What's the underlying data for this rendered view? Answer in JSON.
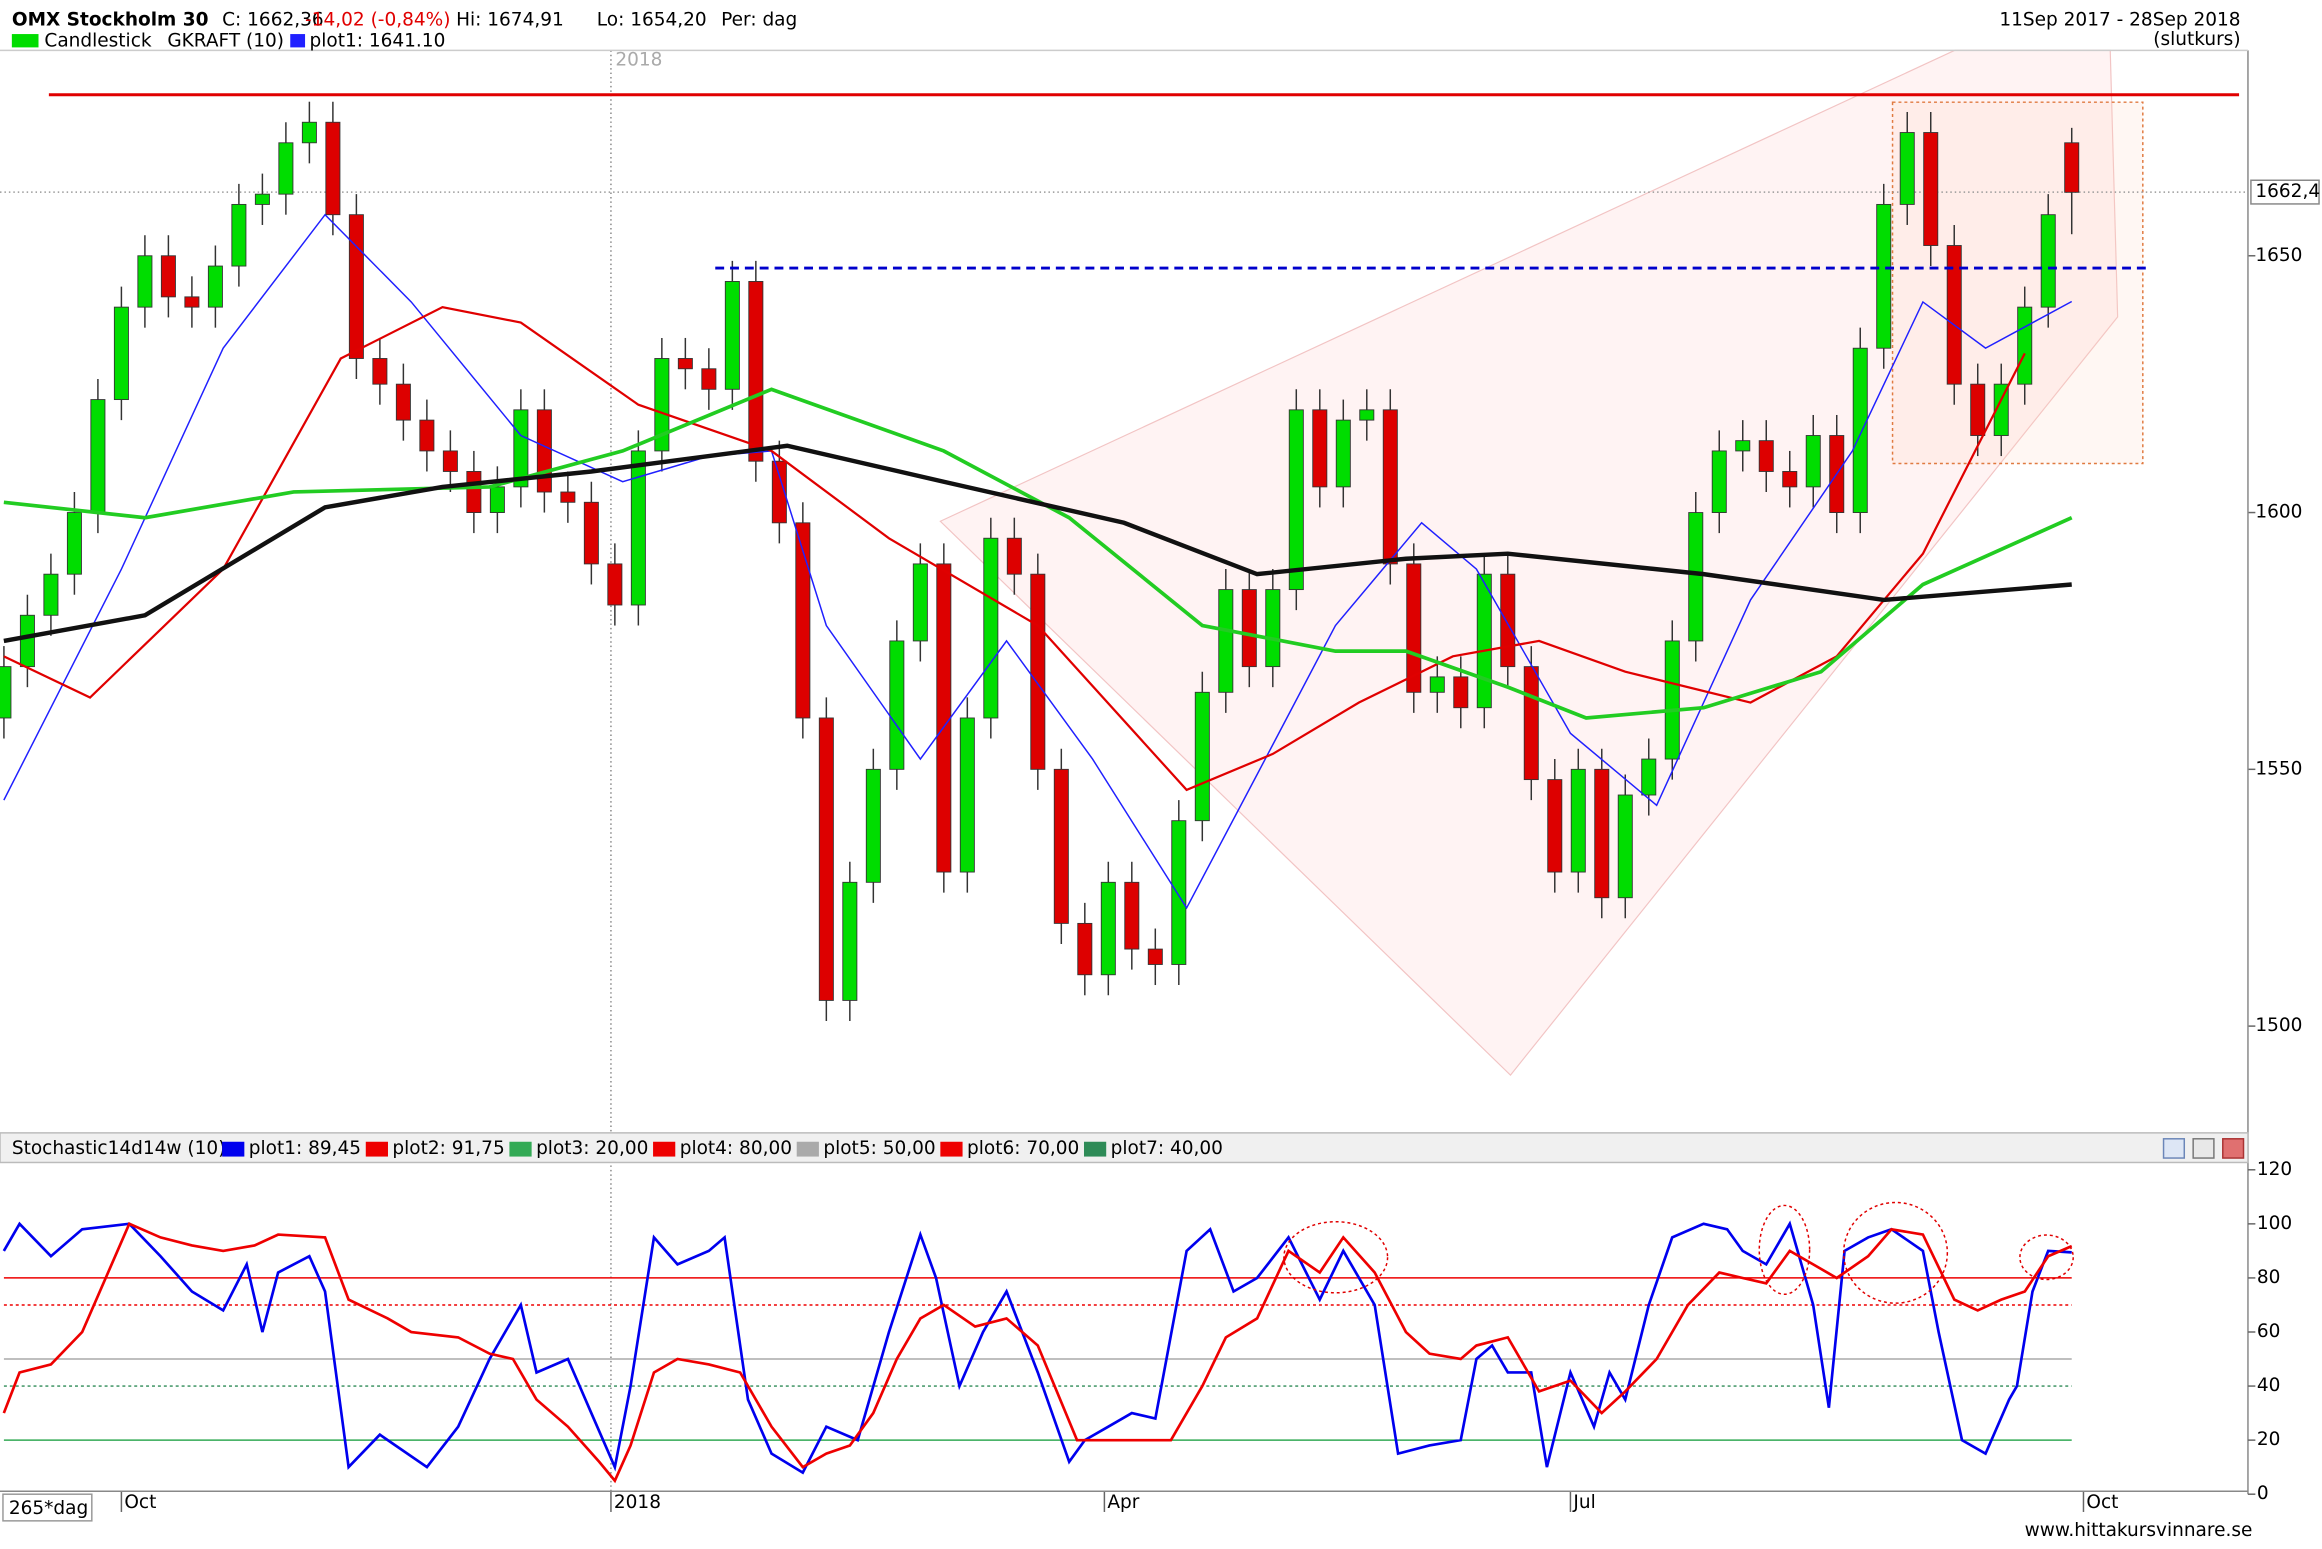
{
  "chart_data": [
    {
      "type": "candlestick",
      "title": "OMX Stockholm 30",
      "quote": {
        "close": "C: 1662,36",
        "change": "-14,02 (-0,84%)",
        "high": "Hi: 1674,91",
        "low": "Lo: 1654,20",
        "period": "Per: dag"
      },
      "date_range": "11Sep 2017 - 28Sep 2018",
      "price_type": "(slutkurs)",
      "candle_label": "Candlestick",
      "indicator": "GKRAFT (10)",
      "up_color": "#00dd00",
      "down_color": "#dd0000",
      "x": [
        0,
        3,
        6,
        9,
        12,
        15,
        18,
        21,
        24,
        27,
        30,
        33,
        36,
        39,
        42,
        45,
        48,
        51,
        54,
        57,
        60,
        63,
        66,
        69,
        72,
        75,
        78,
        81,
        84,
        87,
        90,
        93,
        96,
        99,
        102,
        105,
        108,
        111,
        114,
        117,
        120,
        123,
        126,
        129,
        132,
        135,
        138,
        141,
        144,
        147,
        150,
        153,
        156,
        159,
        162,
        165,
        168,
        171,
        174,
        177,
        180,
        183,
        186,
        189,
        192,
        195,
        198,
        201,
        204,
        207,
        210,
        213,
        216,
        219,
        222,
        225,
        228,
        231,
        234,
        237,
        240,
        243,
        246,
        249,
        252,
        255,
        258,
        261,
        264
      ],
      "open": [
        1560,
        1570,
        1580,
        1588,
        1600,
        1622,
        1640,
        1650,
        1642,
        1640,
        1648,
        1660,
        1662,
        1672,
        1676,
        1658,
        1630,
        1625,
        1618,
        1612,
        1608,
        1600,
        1605,
        1620,
        1604,
        1602,
        1590,
        1582,
        1612,
        1630,
        1628,
        1624,
        1645,
        1610,
        1598,
        1560,
        1505,
        1528,
        1550,
        1575,
        1590,
        1530,
        1560,
        1595,
        1588,
        1550,
        1520,
        1510,
        1528,
        1515,
        1512,
        1540,
        1565,
        1585,
        1570,
        1585,
        1620,
        1605,
        1618,
        1620,
        1590,
        1565,
        1568,
        1562,
        1588,
        1570,
        1548,
        1530,
        1550,
        1525,
        1545,
        1552,
        1575,
        1600,
        1612,
        1614,
        1608,
        1605,
        1615,
        1600,
        1632,
        1660,
        1674,
        1652,
        1625,
        1615,
        1625,
        1640,
        1672
      ],
      "high": [
        1574,
        1584,
        1592,
        1604,
        1626,
        1644,
        1654,
        1654,
        1646,
        1652,
        1664,
        1666,
        1676,
        1680,
        1680,
        1662,
        1634,
        1629,
        1622,
        1616,
        1612,
        1609,
        1624,
        1624,
        1608,
        1606,
        1594,
        1616,
        1634,
        1634,
        1632,
        1649,
        1649,
        1614,
        1602,
        1564,
        1532,
        1554,
        1579,
        1594,
        1594,
        1564,
        1599,
        1599,
        1592,
        1554,
        1524,
        1532,
        1532,
        1519,
        1544,
        1569,
        1589,
        1589,
        1589,
        1624,
        1624,
        1622,
        1624,
        1624,
        1594,
        1572,
        1572,
        1592,
        1592,
        1574,
        1552,
        1554,
        1554,
        1549,
        1556,
        1579,
        1604,
        1616,
        1618,
        1618,
        1612,
        1619,
        1619,
        1636,
        1664,
        1678,
        1678,
        1656,
        1629,
        1629,
        1644,
        1662,
        1674.91
      ],
      "low": [
        1556,
        1566,
        1576,
        1584,
        1596,
        1618,
        1636,
        1638,
        1636,
        1636,
        1644,
        1656,
        1658,
        1668,
        1654,
        1626,
        1621,
        1614,
        1608,
        1604,
        1596,
        1596,
        1601,
        1600,
        1598,
        1586,
        1578,
        1578,
        1608,
        1624,
        1620,
        1620,
        1606,
        1594,
        1556,
        1501,
        1501,
        1524,
        1546,
        1571,
        1526,
        1526,
        1556,
        1584,
        1546,
        1516,
        1506,
        1506,
        1511,
        1508,
        1508,
        1536,
        1561,
        1566,
        1566,
        1581,
        1601,
        1601,
        1614,
        1586,
        1561,
        1561,
        1558,
        1558,
        1566,
        1544,
        1526,
        1526,
        1521,
        1521,
        1541,
        1548,
        1571,
        1596,
        1608,
        1604,
        1601,
        1601,
        1596,
        1596,
        1628,
        1656,
        1648,
        1621,
        1611,
        1611,
        1621,
        1636,
        1654.2
      ],
      "close": [
        1570,
        1580,
        1588,
        1600,
        1622,
        1640,
        1650,
        1642,
        1640,
        1648,
        1660,
        1662,
        1672,
        1676,
        1658,
        1630,
        1625,
        1618,
        1612,
        1608,
        1600,
        1605,
        1620,
        1604,
        1602,
        1590,
        1582,
        1612,
        1630,
        1628,
        1624,
        1645,
        1610,
        1598,
        1560,
        1505,
        1528,
        1550,
        1575,
        1590,
        1530,
        1560,
        1595,
        1588,
        1550,
        1520,
        1510,
        1528,
        1515,
        1512,
        1540,
        1565,
        1585,
        1570,
        1585,
        1620,
        1605,
        1618,
        1620,
        1590,
        1565,
        1568,
        1562,
        1588,
        1570,
        1548,
        1530,
        1550,
        1525,
        1545,
        1552,
        1575,
        1600,
        1612,
        1614,
        1608,
        1605,
        1615,
        1600,
        1632,
        1660,
        1674,
        1652,
        1625,
        1615,
        1625,
        1640,
        1658,
        1662.36
      ],
      "series": [
        {
          "name": "plot1: 1641.10",
          "color": "#2020ff",
          "line_width": 1,
          "x": [
            0,
            15,
            28,
            41,
            52,
            66,
            79,
            90,
            98,
            105,
            117,
            128,
            139,
            151,
            160,
            170,
            181,
            188,
            200,
            211,
            223,
            236,
            245,
            253,
            264
          ],
          "values": [
            1544,
            1589,
            1632,
            1658,
            1641,
            1615,
            1606,
            1611,
            1612,
            1578,
            1552,
            1575,
            1552,
            1523,
            1549,
            1578,
            1598,
            1589,
            1557,
            1543,
            1583,
            1612,
            1641,
            1632,
            1641.1
          ]
        },
        {
          "color": "#e00000",
          "line_width": 1.5,
          "x": [
            0,
            11,
            28,
            43,
            56,
            66,
            81,
            98,
            113,
            132,
            151,
            162,
            173,
            185,
            196,
            207,
            223,
            234,
            245,
            258
          ],
          "values": [
            1572,
            1564,
            1589,
            1630,
            1640,
            1637,
            1621,
            1612,
            1595,
            1578,
            1546,
            1553,
            1563,
            1572,
            1575,
            1569,
            1563,
            1572,
            1592,
            1631
          ]
        },
        {
          "color": "#22cc22",
          "line_width": 2.5,
          "x": [
            0,
            18,
            37,
            62,
            79,
            98,
            120,
            136,
            153,
            170,
            179,
            192,
            202,
            217,
            232,
            245,
            264
          ],
          "values": [
            1602,
            1599,
            1604,
            1605,
            1612,
            1624,
            1612,
            1599,
            1578,
            1573,
            1573,
            1566,
            1560,
            1562,
            1569,
            1586,
            1599
          ]
        },
        {
          "color": "#111111",
          "line_width": 3,
          "x": [
            0,
            18,
            41,
            56,
            75,
            100,
            120,
            143,
            160,
            179,
            192,
            217,
            240,
            264
          ],
          "values": [
            1575,
            1580,
            1601,
            1605,
            1608,
            1613,
            1606,
            1598,
            1588,
            1591,
            1592,
            1588,
            1583,
            1586
          ]
        }
      ],
      "xlim": [
        -0.5,
        286.5
      ],
      "ylim": [
        1479.5,
        1690
      ],
      "yticks": [
        1500,
        1550,
        1600,
        1650
      ],
      "last_price": {
        "value": 1662.4,
        "label": "1662,4"
      }
    },
    {
      "type": "line",
      "title": "Stochastic14d14w (10)",
      "series": [
        {
          "name": "plot1: 89,45",
          "color": "#0000ee",
          "x": [
            0,
            2,
            6,
            10,
            16,
            20,
            24,
            28,
            31,
            33,
            35,
            39,
            41,
            44,
            48,
            50,
            54,
            58,
            62,
            66,
            68,
            72,
            75,
            78,
            80,
            83,
            86,
            90,
            92,
            95,
            98,
            102,
            105,
            109,
            113,
            117,
            119,
            122,
            125,
            128,
            132,
            136,
            138,
            141,
            144,
            147,
            151,
            154,
            157,
            160,
            164,
            168,
            171,
            175,
            178,
            182,
            186,
            188,
            190,
            192,
            195,
            197,
            200,
            203,
            205,
            207,
            210,
            213,
            217,
            220,
            222,
            225,
            228,
            231,
            233,
            235,
            238,
            241,
            245,
            247,
            250,
            253,
            256,
            257,
            259,
            261,
            264
          ],
          "values": [
            90,
            100,
            88,
            98,
            100,
            88,
            75,
            68,
            85,
            60,
            82,
            88,
            75,
            10,
            22,
            18,
            10,
            25,
            50,
            70,
            45,
            50,
            30,
            10,
            40,
            95,
            85,
            90,
            95,
            35,
            15,
            8,
            25,
            20,
            60,
            96,
            80,
            40,
            60,
            75,
            45,
            12,
            20,
            25,
            30,
            28,
            90,
            98,
            75,
            80,
            95,
            72,
            90,
            70,
            15,
            18,
            20,
            50,
            55,
            45,
            45,
            10,
            45,
            25,
            45,
            35,
            70,
            95,
            100,
            98,
            90,
            85,
            100,
            70,
            32,
            90,
            95,
            98,
            90,
            60,
            20,
            15,
            35,
            40,
            75,
            90,
            89.45
          ]
        },
        {
          "name": "plot2: 91,75",
          "color": "#ee0000",
          "x": [
            0,
            2,
            6,
            10,
            16,
            20,
            24,
            28,
            32,
            35,
            41,
            44,
            49,
            52,
            58,
            62,
            65,
            68,
            72,
            76,
            78,
            80,
            83,
            86,
            90,
            94,
            98,
            102,
            105,
            108,
            111,
            114,
            117,
            120,
            124,
            128,
            132,
            137,
            140,
            144,
            149,
            153,
            156,
            160,
            164,
            168,
            171,
            175,
            179,
            182,
            186,
            188,
            192,
            196,
            200,
            204,
            207,
            211,
            215,
            219,
            222,
            225,
            228,
            231,
            234,
            238,
            241,
            245,
            249,
            252,
            255,
            258,
            261,
            264
          ],
          "values": [
            30,
            45,
            48,
            60,
            100,
            95,
            92,
            90,
            92,
            96,
            95,
            72,
            65,
            60,
            58,
            52,
            50,
            35,
            25,
            12,
            5,
            18,
            45,
            50,
            48,
            45,
            25,
            10,
            15,
            18,
            30,
            50,
            65,
            70,
            62,
            65,
            55,
            20,
            20,
            20,
            20,
            40,
            58,
            65,
            90,
            82,
            95,
            82,
            60,
            52,
            50,
            55,
            58,
            38,
            42,
            30,
            38,
            50,
            70,
            82,
            80,
            78,
            90,
            85,
            80,
            88,
            98,
            96,
            72,
            68,
            72,
            75,
            88,
            91.75
          ]
        }
      ],
      "levels": [
        {
          "name": "plot3: 20,00",
          "color": "#33aa55",
          "level": 20,
          "dotted": false
        },
        {
          "name": "plot4: 80,00",
          "color": "#ee0000",
          "level": 80,
          "dotted": false
        },
        {
          "name": "plot5: 50,00",
          "color": "#aaaaaa",
          "level": 50,
          "dotted": false
        },
        {
          "name": "plot6: 70,00",
          "color": "#ee0000",
          "level": 70,
          "dotted": true
        },
        {
          "name": "plot7: 40,00",
          "color": "#2e8b57",
          "level": 40,
          "dotted": true
        }
      ],
      "period_label": "265*dag",
      "xlim": [
        -0.5,
        286.5
      ],
      "ylim": [
        0,
        122.7
      ],
      "yticks": [
        0,
        20,
        40,
        60,
        80,
        100,
        120
      ],
      "xticks": [
        {
          "value": 15,
          "label": "Oct"
        },
        {
          "value": 77.5,
          "label": "2018"
        },
        {
          "value": 140.5,
          "label": "Apr"
        },
        {
          "value": 200,
          "label": "Jul"
        },
        {
          "value": 265.5,
          "label": "Oct"
        }
      ]
    }
  ],
  "footer": "www.hittakursvinnare.se"
}
